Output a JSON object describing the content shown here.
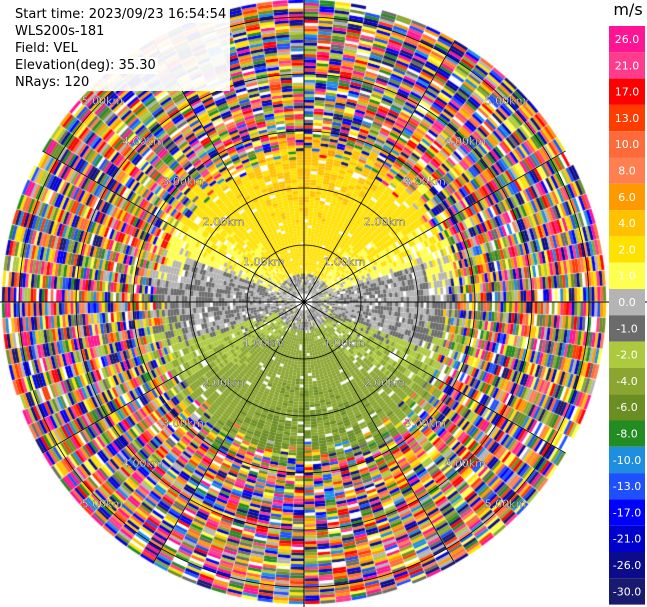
{
  "info": {
    "start_time": "Start time: 2023/09/23 16:54:54",
    "station": "WLS200s-181",
    "field": "Field: VEL",
    "elevation": "Elevation(deg): 35.30",
    "nrays": "NRays: 120"
  },
  "chart_data": {
    "type": "heatmap",
    "projection": "polar-ppi",
    "field": "VEL",
    "unit": "m/s",
    "nrays": 120,
    "range_ring_labels": [
      "1.00km",
      "2.00km",
      "3.00km",
      "4.00km",
      "5.00km"
    ],
    "range_rings_km": [
      1,
      2,
      3,
      4,
      5
    ],
    "max_range_km": 5.3,
    "colorbar": {
      "unit": "m/s",
      "ticks": [
        "26.0",
        "21.0",
        "17.0",
        "13.0",
        "10.0",
        "8.0",
        "6.0",
        "4.0",
        "2.0",
        "1.0",
        "0.0",
        "-1.0",
        "-2.0",
        "-4.0",
        "-6.0",
        "-8.0",
        "-10.0",
        "-13.0",
        "-17.0",
        "-21.0",
        "-26.0",
        "-30.0"
      ],
      "colors": [
        "#ff1493",
        "#ff3b8e",
        "#ff0000",
        "#ff3c00",
        "#ff6a3a",
        "#ff7f50",
        "#ff9900",
        "#ffc100",
        "#ffe100",
        "#ffff4d",
        "#b4b4b4",
        "#6b6b6b",
        "#adc93e",
        "#8aa630",
        "#6b8e23",
        "#228b22",
        "#1e8ee0",
        "#1e50ff",
        "#0000ff",
        "#0000cd",
        "#0b0b8c",
        "#191970"
      ]
    },
    "velocity_pattern": "outbound yellow (+2 to +4 m/s) toward north, inbound green (-2 to -6 m/s) toward south, near-zero grey near center and east/west, noisy random colors beyond ~2.8 km"
  }
}
